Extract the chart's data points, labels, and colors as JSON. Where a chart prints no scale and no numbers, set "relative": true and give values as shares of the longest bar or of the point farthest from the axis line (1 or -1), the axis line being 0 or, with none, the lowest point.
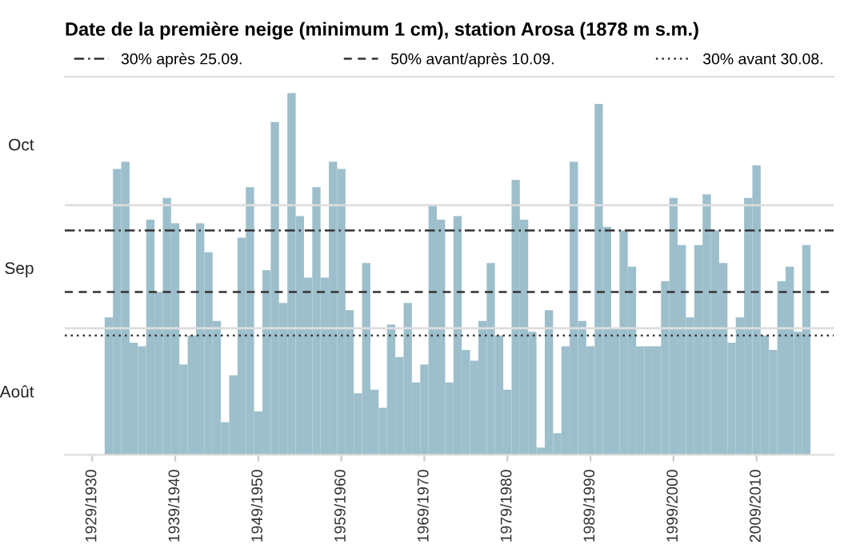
{
  "chart_data": {
    "type": "bar",
    "title": "Date de la première neige (minimum 1 cm), station Arosa (1878 m s.m.)",
    "categories": [
      "1929/1930",
      null,
      null,
      null,
      null,
      null,
      null,
      null,
      null,
      null,
      "1939/1940",
      null,
      null,
      null,
      null,
      null,
      null,
      null,
      null,
      null,
      "1949/1950",
      null,
      null,
      null,
      null,
      null,
      null,
      null,
      null,
      null,
      "1959/1960",
      null,
      null,
      null,
      null,
      null,
      null,
      null,
      null,
      null,
      "1969/1970",
      null,
      null,
      null,
      null,
      null,
      null,
      null,
      null,
      null,
      "1979/1980",
      null,
      null,
      null,
      null,
      null,
      null,
      null,
      null,
      null,
      "1989/1990",
      null,
      null,
      null,
      null,
      null,
      null,
      null,
      null,
      null,
      "1999/2000",
      null,
      null,
      null,
      null,
      null,
      null,
      null,
      null,
      null,
      "2009/2010",
      null,
      null,
      null,
      null,
      null,
      null
    ],
    "values": [
      null,
      null,
      0.38,
      0.79,
      0.81,
      0.31,
      0.3,
      0.65,
      0.45,
      0.71,
      0.64,
      0.25,
      0.33,
      0.64,
      0.56,
      0.37,
      0.09,
      0.22,
      0.6,
      0.74,
      0.12,
      0.51,
      0.92,
      0.42,
      1,
      0.66,
      0.49,
      0.74,
      0.49,
      0.81,
      0.79,
      0.4,
      0.17,
      0.53,
      0.18,
      0.13,
      0.36,
      0.27,
      0.42,
      0.2,
      0.25,
      0.69,
      0.65,
      0.2,
      0.66,
      0.29,
      0.26,
      0.37,
      0.53,
      0.33,
      0.18,
      0.76,
      0.65,
      0.34,
      0.02,
      0.4,
      0.06,
      0.3,
      0.81,
      0.37,
      0.3,
      0.97,
      0.63,
      0.35,
      0.62,
      0.52,
      0.3,
      0.3,
      0.3,
      0.48,
      0.71,
      0.58,
      0.38,
      0.58,
      0.72,
      0.62,
      0.53,
      0.31,
      0.38,
      0.71,
      0.8,
      0.33,
      0.29,
      0.48,
      0.52,
      0.34,
      0.58
    ],
    "relative": true,
    "color": "#9dbfcc",
    "annotations": [
      "Août",
      "Sep",
      "Oct"
    ],
    "ref_lines": [
      {
        "axis": "y",
        "value": 0.35,
        "color": "#dddddd",
        "line_style": "solid"
      },
      {
        "axis": "y",
        "value": 0.69,
        "color": "#dddddd",
        "line_style": "solid"
      },
      {
        "axis": "y",
        "value": 0.62,
        "label": "30% après 25.09.",
        "color": "#333333",
        "line_style": "dashdot"
      },
      {
        "axis": "y",
        "value": 0.45,
        "label": "50% avant/après 10.09.",
        "color": "#333333",
        "line_style": "dashed"
      },
      {
        "axis": "y",
        "value": 0.33,
        "label": "30% avant 30.08.",
        "color": "#333333",
        "line_style": "dotted"
      }
    ],
    "legend": "top",
    "grid": false
  }
}
